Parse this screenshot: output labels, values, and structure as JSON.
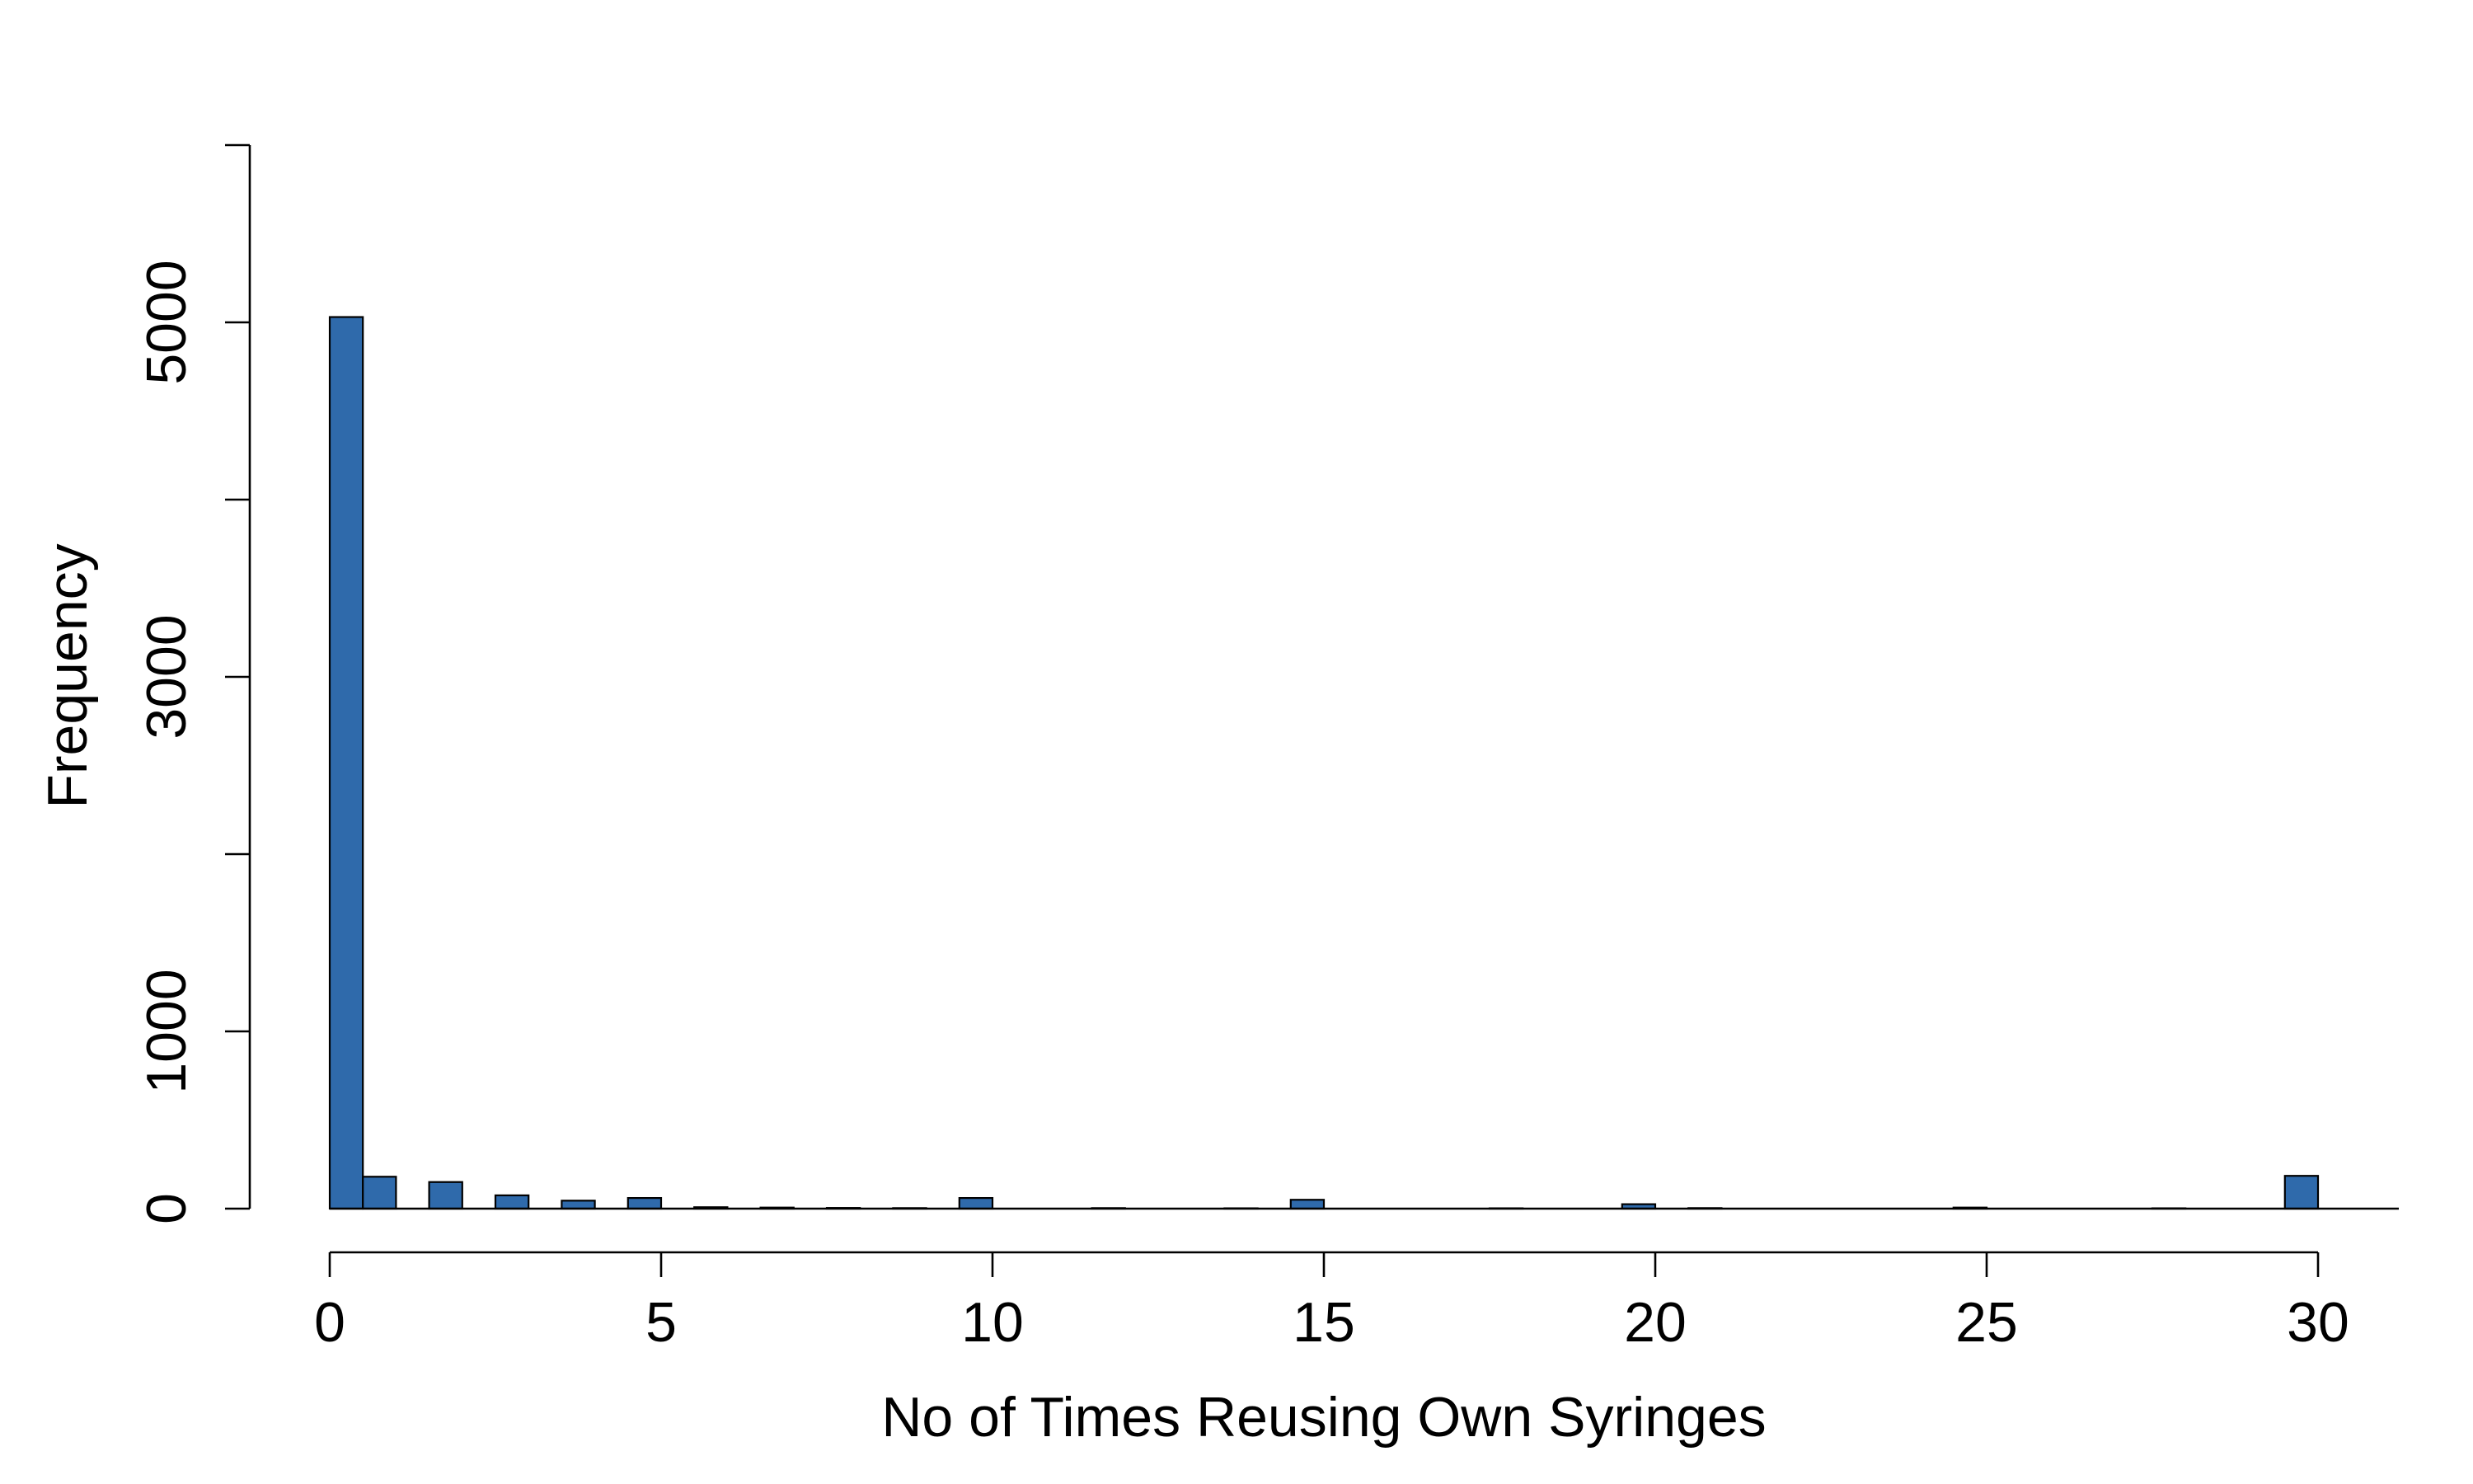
{
  "chart_data": {
    "type": "bar",
    "title": "",
    "xlabel": "No of Times Reusing Own Syringes",
    "ylabel": "Frequency",
    "x_ticks": [
      "0",
      "5",
      "10",
      "15",
      "20",
      "25",
      "30"
    ],
    "y_ticks": [
      "0",
      "1000",
      "3000",
      "5000"
    ],
    "xlim": [
      0,
      30
    ],
    "ylim": [
      0,
      6000
    ],
    "grid": false,
    "bar_color": "#2f6aab",
    "bins": [
      {
        "x0": 0.0,
        "x1": 0.5,
        "count": 5030
      },
      {
        "x0": 0.5,
        "x1": 1.0,
        "count": 180
      },
      {
        "x0": 1.5,
        "x1": 2.0,
        "count": 150
      },
      {
        "x0": 2.5,
        "x1": 3.0,
        "count": 75
      },
      {
        "x0": 3.5,
        "x1": 4.0,
        "count": 45
      },
      {
        "x0": 4.5,
        "x1": 5.0,
        "count": 60
      },
      {
        "x0": 5.5,
        "x1": 6.0,
        "count": 8
      },
      {
        "x0": 6.5,
        "x1": 7.0,
        "count": 6
      },
      {
        "x0": 7.5,
        "x1": 8.0,
        "count": 4
      },
      {
        "x0": 8.5,
        "x1": 9.0,
        "count": 3
      },
      {
        "x0": 9.5,
        "x1": 10.0,
        "count": 60
      },
      {
        "x0": 11.5,
        "x1": 12.0,
        "count": 3
      },
      {
        "x0": 13.5,
        "x1": 14.0,
        "count": 2
      },
      {
        "x0": 14.5,
        "x1": 15.0,
        "count": 50
      },
      {
        "x0": 17.5,
        "x1": 18.0,
        "count": 2
      },
      {
        "x0": 19.5,
        "x1": 20.0,
        "count": 25
      },
      {
        "x0": 20.5,
        "x1": 21.0,
        "count": 3
      },
      {
        "x0": 24.5,
        "x1": 25.0,
        "count": 6
      },
      {
        "x0": 27.5,
        "x1": 28.0,
        "count": 2
      },
      {
        "x0": 29.5,
        "x1": 30.0,
        "count": 185
      }
    ]
  }
}
